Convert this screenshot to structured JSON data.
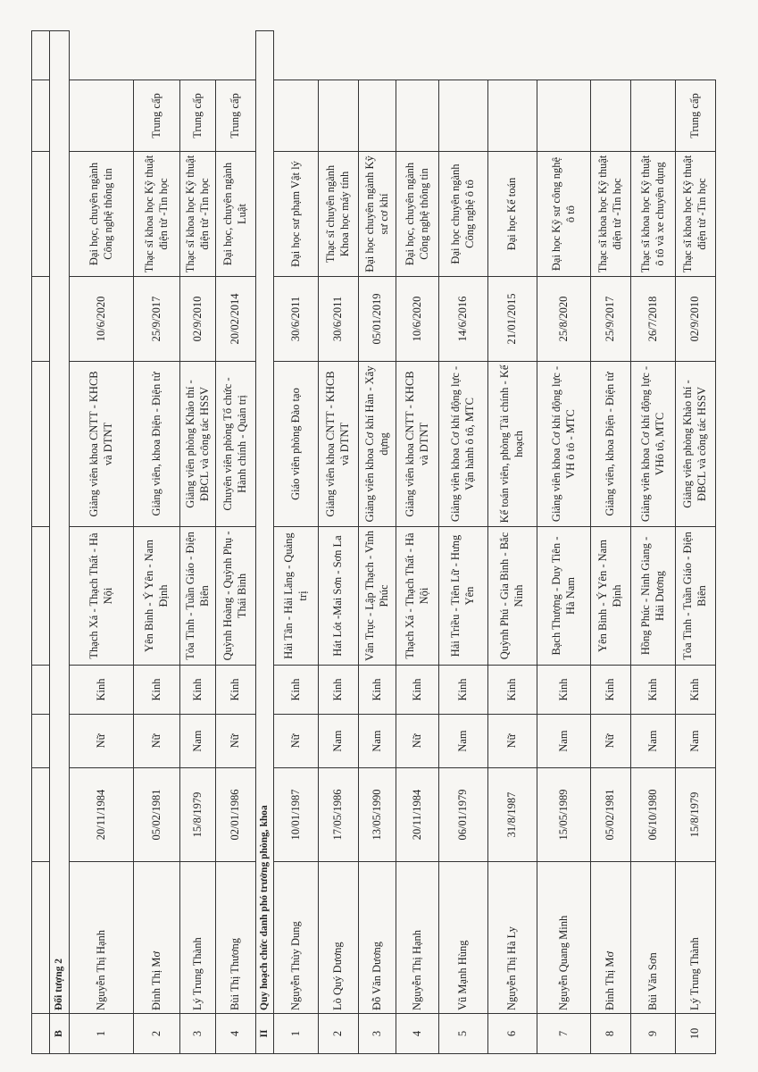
{
  "section_b": {
    "code": "B",
    "title": "Đối tượng 2"
  },
  "section_b_rows": [
    [
      "1",
      "Nguyễn Thị Hạnh",
      "20/11/1984",
      "Nữ",
      "Kinh",
      "Thạch Xá - Thạch Thất - Hà Nội",
      "Giảng viên khoa CNTT - KHCB và DTNT",
      "10/6/2020",
      "Đại học, chuyên ngành Công nghệ thông tin",
      ""
    ],
    [
      "2",
      "Đinh Thị Mơ",
      "05/02/1981",
      "Nữ",
      "Kinh",
      "Yên Bình - Ý Yên - Nam Định",
      "Giảng viên, khoa Điện - Điện tử",
      "25/9/2017",
      "Thạc sĩ khoa học Kỹ thuật điện tử -Tin học",
      "Trung cấp"
    ],
    [
      "3",
      "Lý Trung Thành",
      "15/8/1979",
      "Nam",
      "Kinh",
      "Tỏa Tình - Tuần Giáo - Điện Biên",
      "Giảng viên phòng Khảo thí - ĐBCL và công tác HSSV",
      "02/9/2010",
      "Thạc sĩ khoa học Kỹ thuật điện tử -Tin học",
      "Trung cấp"
    ],
    [
      "4",
      "Bùi Thị Thương",
      "02/01/1986",
      "Nữ",
      "Kinh",
      "Quỳnh Hoàng - Quỳnh Phụ - Thái Bình",
      "Chuyên viên phòng Tổ chức - Hành chính - Quản trị",
      "20/02/2014",
      "Đại học, chuyên ngành Luật",
      "Trung cấp"
    ]
  ],
  "section_ii": {
    "code": "II",
    "title": "Quy hoạch chức danh phó trưởng phòng, khoa"
  },
  "section_ii_rows": [
    [
      "1",
      "Nguyễn Thùy Dung",
      "10/01/1987",
      "Nữ",
      "Kinh",
      "Hải Tân - Hải Lăng - Quảng trị",
      "Giáo viên phòng Đào tạo",
      "30/6/2011",
      "Đại học sư phạm Vật lý",
      ""
    ],
    [
      "2",
      "Lò Quý Dương",
      "17/05/1986",
      "Nam",
      "Kinh",
      "Hát Lót -Mai Sơn - Sơn La",
      "Giảng viên khoa CNTT - KHCB và DTNT",
      "30/6/2011",
      "Thạc sĩ chuyên ngành Khoa học máy tính",
      ""
    ],
    [
      "3",
      "Đỗ Văn Dương",
      "13/05/1990",
      "Nam",
      "Kinh",
      "Vân Trục - Lập Thạch - Vĩnh Phúc",
      "Giảng viên khoa Cơ khí Hàn - Xây dựng",
      "05/01/2019",
      "Đại học chuyên ngành Kỹ sư cơ khí",
      ""
    ],
    [
      "4",
      "Nguyễn Thị Hạnh",
      "20/11/1984",
      "Nữ",
      "Kinh",
      "Thạch Xá - Thạch Thất - Hà Nội",
      "Giảng viên khoa CNTT - KHCB và DTNT",
      "10/6/2020",
      "Đại học, chuyên ngành Công nghệ thông tin",
      ""
    ],
    [
      "5",
      "Vũ Mạnh Hùng",
      "06/01/1979",
      "Nam",
      "Kinh",
      "Hải Triều - Tiên Lữ - Hưng Yên",
      "Giảng viên khoa Cơ khí động lực - Vận hành ô tô, MTC",
      "14/6/2016",
      "Đại học chuyên ngành Công nghệ ô tô",
      ""
    ],
    [
      "6",
      "Nguyễn Thị Hà Ly",
      "31/8/1987",
      "Nữ",
      "Kinh",
      "Quỳnh Phú - Gia Bình - Bắc Ninh",
      "Kế toán viên, phòng Tài chính - Kế hoạch",
      "21/01/2015",
      "Đại học Kế toán",
      ""
    ],
    [
      "7",
      "Nguyễn Quang Minh",
      "15/05/1989",
      "Nam",
      "Kinh",
      "Bạch Thượng - Duy Tiên - Hà Nam",
      "Giảng viên khoa Cơ khí động lực - VH ô tô - MTC",
      "25/8/2020",
      "Đại học Kỹ sư công nghệ ô tô",
      ""
    ],
    [
      "8",
      "Đinh Thị Mơ",
      "05/02/1981",
      "Nữ",
      "Kinh",
      "Yên Bình - Ý Yên - Nam Định",
      "Giảng viên, khoa Điện - Điện tử",
      "25/9/2017",
      "Thạc sĩ khoa học Kỹ thuật điện tử -Tin học",
      ""
    ],
    [
      "9",
      "Bùi Văn Sơn",
      "06/10/1980",
      "Nam",
      "Kinh",
      "Hồng Phúc - Ninh Giang - Hải Dương",
      "Giảng viên khoa Cơ khí động lực - VHô tô, MTC",
      "26/7/2018",
      "Thạc sĩ khoa học Kỹ thuật ô tô và xe chuyên dụng",
      ""
    ],
    [
      "10",
      "Lý Trung Thành",
      "15/8/1979",
      "Nam",
      "Kinh",
      "Tỏa Tình - Tuần Giáo - Điện Biên",
      "Giảng viên phòng Khảo thí - ĐBCL và công tác HSSV",
      "02/9/2010",
      "Thạc sĩ khoa học Kỹ thuật điện tử -Tin học",
      "Trung cấp"
    ]
  ]
}
